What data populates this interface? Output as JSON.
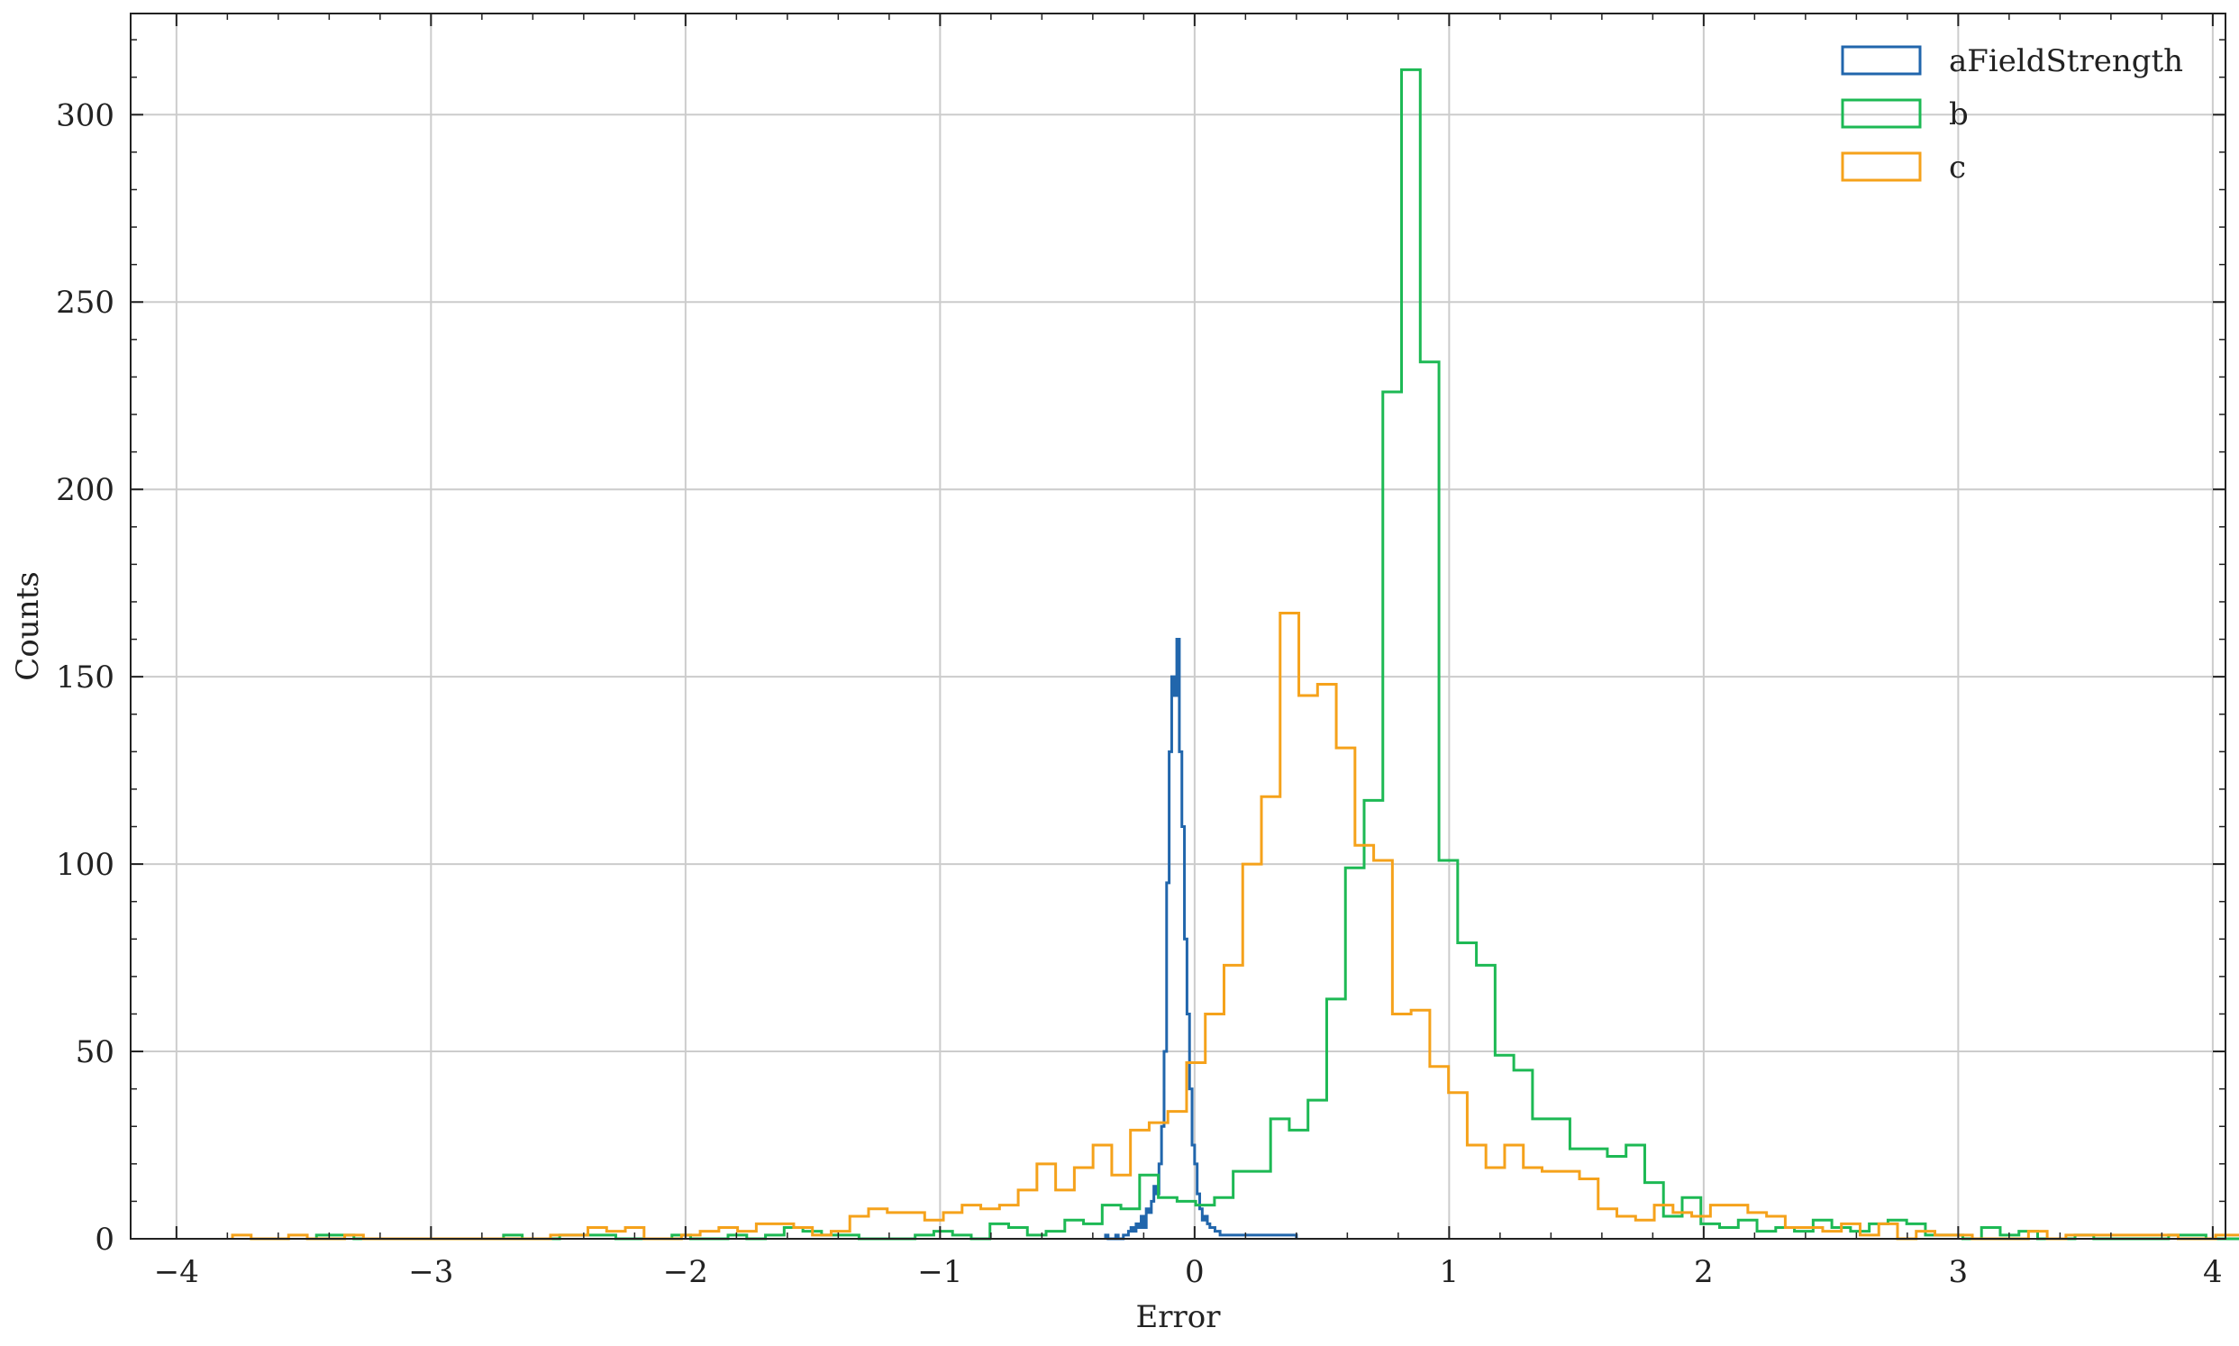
{
  "chart_data": {
    "type": "histogram",
    "xlabel": "Error",
    "ylabel": "Counts",
    "xlim": [
      -4.18,
      4.05
    ],
    "ylim": [
      0,
      327
    ],
    "xticks": [
      -4,
      -3,
      -2,
      -1,
      0,
      1,
      2,
      3,
      4
    ],
    "xtick_labels": [
      "−4",
      "−3",
      "−2",
      "−1",
      "0",
      "1",
      "2",
      "3",
      "4"
    ],
    "yticks": [
      0,
      50,
      100,
      150,
      200,
      250,
      300
    ],
    "ytick_labels": [
      "0",
      "50",
      "100",
      "150",
      "200",
      "250",
      "300"
    ],
    "grid": true,
    "legend_position": "top-right",
    "series": [
      {
        "name": "aFieldStrength",
        "color": "#2166ac",
        "bin_start": -0.35,
        "bin_width": 0.01,
        "counts": [
          1,
          0,
          0,
          0,
          1,
          0,
          0,
          1,
          1,
          2,
          3,
          2,
          4,
          3,
          6,
          3,
          8,
          7,
          10,
          14,
          12,
          20,
          30,
          50,
          95,
          130,
          150,
          145,
          160,
          130,
          110,
          80,
          60,
          40,
          25,
          20,
          12,
          8,
          5,
          6,
          4,
          3,
          3,
          2,
          2,
          1,
          1,
          1,
          1,
          1,
          1,
          1,
          1,
          1,
          1,
          1,
          1,
          1,
          1,
          1,
          1,
          1,
          1,
          1,
          1,
          1,
          1,
          1,
          1,
          1,
          1,
          1,
          1,
          1,
          1
        ]
      },
      {
        "name": "b",
        "color": "#1db954",
        "bin_start": -3.45,
        "bin_width": 0.0735,
        "counts": [
          1,
          1,
          0,
          0,
          0,
          0,
          0,
          0,
          0,
          0,
          1,
          0,
          0,
          1,
          1,
          1,
          0,
          0,
          0,
          1,
          0,
          0,
          1,
          0,
          1,
          3,
          2,
          1,
          1,
          0,
          0,
          0,
          1,
          2,
          1,
          0,
          4,
          3,
          1,
          2,
          5,
          4,
          9,
          8,
          17,
          11,
          10,
          9,
          11,
          18,
          18,
          32,
          29,
          37,
          64,
          99,
          117,
          226,
          312,
          234,
          101,
          79,
          73,
          49,
          45,
          32,
          32,
          24,
          24,
          22,
          25,
          15,
          6,
          11,
          4,
          3,
          5,
          2,
          3,
          2,
          5,
          3,
          2,
          4,
          5,
          4,
          1,
          1,
          0,
          3,
          1,
          2,
          0,
          0,
          1,
          0,
          0,
          0,
          0,
          1,
          1,
          0,
          0,
          0,
          1,
          1
        ]
      },
      {
        "name": "c",
        "color": "#f5a21b",
        "bin_start": -3.78,
        "bin_width": 0.0735,
        "counts": [
          1,
          0,
          0,
          1,
          0,
          0,
          1,
          0,
          0,
          0,
          0,
          0,
          0,
          0,
          0,
          0,
          0,
          1,
          1,
          3,
          2,
          3,
          0,
          0,
          1,
          2,
          3,
          2,
          4,
          4,
          3,
          1,
          2,
          6,
          8,
          7,
          7,
          5,
          7,
          9,
          8,
          9,
          13,
          20,
          13,
          19,
          25,
          17,
          29,
          31,
          34,
          47,
          60,
          73,
          100,
          118,
          167,
          145,
          148,
          131,
          105,
          101,
          60,
          61,
          46,
          39,
          25,
          19,
          25,
          19,
          18,
          18,
          16,
          8,
          6,
          5,
          9,
          7,
          6,
          9,
          9,
          7,
          6,
          3,
          3,
          2,
          4,
          1,
          4,
          0,
          2,
          1,
          1,
          0,
          0,
          0,
          2,
          0,
          1,
          1,
          1,
          1,
          1,
          1,
          0,
          0,
          1,
          1
        ]
      }
    ]
  }
}
